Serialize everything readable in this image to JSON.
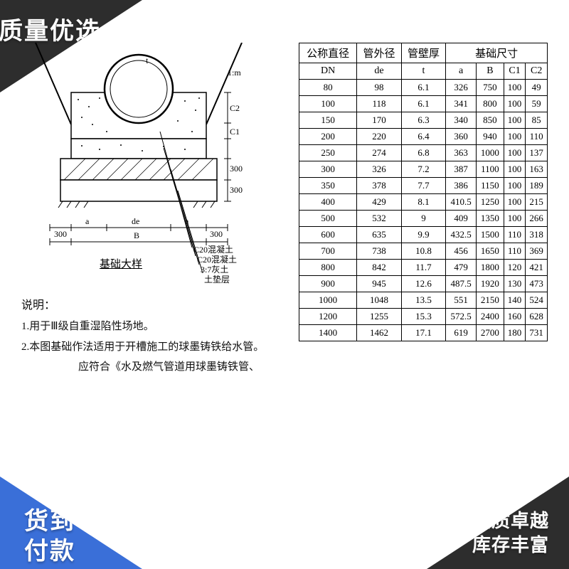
{
  "badges": {
    "top_left": "质量优选",
    "bottom_left": "货到\n付款",
    "bottom_right_line1": "品质卓越",
    "bottom_right_line2": "库存丰富"
  },
  "diagram": {
    "title": "基础大样",
    "layer_labels": [
      "C20混凝土",
      "C20混凝土",
      "3:7灰土",
      "土垫层"
    ],
    "dim_a": "a",
    "dim_de": "de",
    "dim_B": "B",
    "dim_300_left": "300",
    "dim_300_right": "300",
    "dim_300_v1": "300",
    "dim_300_v2": "300",
    "dim_C1": "C1",
    "dim_C2": "C2",
    "dim_t": "t",
    "slope": "1:m",
    "colors": {
      "line": "#000000",
      "fill_top": "#ffffff",
      "hatch": "#000000"
    }
  },
  "notes": {
    "heading": "说明：",
    "line1": "1.用于Ⅲ级自重湿陷性场地。",
    "line2": "2.本图基础作法适用于开槽施工的球墨铸铁给水管。",
    "line3_partial": "应符合《水及燃气管道用球墨铸铁管、"
  },
  "table": {
    "header_group_left": [
      "公称直径",
      "管外径",
      "管壁厚"
    ],
    "header_group_right": "基础尺寸",
    "sub_headers": [
      "DN",
      "de",
      "t",
      "a",
      "B",
      "C1",
      "C2"
    ],
    "rows": [
      [
        "80",
        "98",
        "6.1",
        "326",
        "750",
        "100",
        "49"
      ],
      [
        "100",
        "118",
        "6.1",
        "341",
        "800",
        "100",
        "59"
      ],
      [
        "150",
        "170",
        "6.3",
        "340",
        "850",
        "100",
        "85"
      ],
      [
        "200",
        "220",
        "6.4",
        "360",
        "940",
        "100",
        "110"
      ],
      [
        "250",
        "274",
        "6.8",
        "363",
        "1000",
        "100",
        "137"
      ],
      [
        "300",
        "326",
        "7.2",
        "387",
        "1100",
        "100",
        "163"
      ],
      [
        "350",
        "378",
        "7.7",
        "386",
        "1150",
        "100",
        "189"
      ],
      [
        "400",
        "429",
        "8.1",
        "410.5",
        "1250",
        "100",
        "215"
      ],
      [
        "500",
        "532",
        "9",
        "409",
        "1350",
        "100",
        "266"
      ],
      [
        "600",
        "635",
        "9.9",
        "432.5",
        "1500",
        "110",
        "318"
      ],
      [
        "700",
        "738",
        "10.8",
        "456",
        "1650",
        "110",
        "369"
      ],
      [
        "800",
        "842",
        "11.7",
        "479",
        "1800",
        "120",
        "421"
      ],
      [
        "900",
        "945",
        "12.6",
        "487.5",
        "1920",
        "130",
        "473"
      ],
      [
        "1000",
        "1048",
        "13.5",
        "551",
        "2150",
        "140",
        "524"
      ],
      [
        "1200",
        "1255",
        "15.3",
        "572.5",
        "2400",
        "160",
        "628"
      ],
      [
        "1400",
        "1462",
        "17.1",
        "619",
        "2700",
        "180",
        "731"
      ]
    ],
    "border_color": "#000000",
    "bg_color": "#ffffff"
  }
}
